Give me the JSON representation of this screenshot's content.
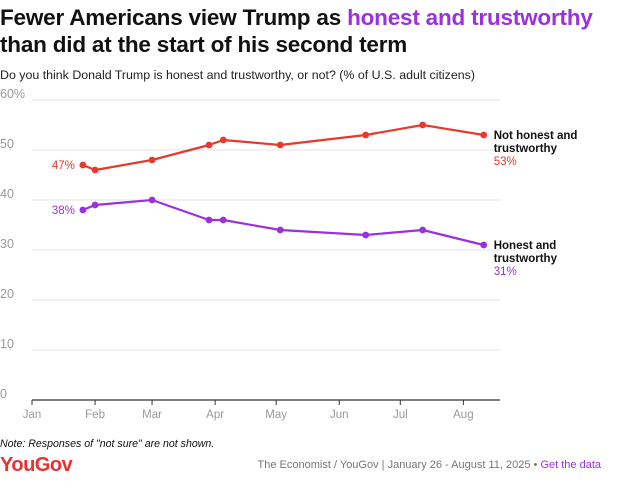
{
  "title": {
    "part1": "Fewer Americans view Trump as ",
    "highlight": "honest and trustworthy",
    "part2": " than did at the start of his second term"
  },
  "subtitle": "Do you think Donald Trump is honest and trustworthy, or not? (% of U.S. adult citizens)",
  "note": "Note: Responses of \"not sure\" are not shown.",
  "footer": {
    "logo": "YouGov",
    "source": "The Economist / YouGov | January 26 - August 11, 2025",
    "separator": "•",
    "link": "Get the data"
  },
  "colors": {
    "not_honest": "#e8392d",
    "honest": "#9b30e0",
    "grid": "#e3e3e3",
    "axis": "#333333",
    "tick": "#999999"
  },
  "chart_data": {
    "type": "line",
    "title": "Fewer Americans view Trump as honest and trustworthy than did at the start of his second term",
    "xlabel": "",
    "ylabel": "% of U.S. adult citizens",
    "ylim": [
      0,
      60
    ],
    "yticks": [
      0,
      10,
      20,
      30,
      40,
      50,
      60
    ],
    "ytick_labels": [
      "0",
      "10",
      "20",
      "30",
      "40",
      "50",
      "60%"
    ],
    "xlim_days": [
      0,
      230
    ],
    "xticks": [
      {
        "label": "Jan",
        "day": 0
      },
      {
        "label": "Feb",
        "day": 31
      },
      {
        "label": "Mar",
        "day": 59
      },
      {
        "label": "Apr",
        "day": 90
      },
      {
        "label": "May",
        "day": 120
      },
      {
        "label": "Jun",
        "day": 151
      },
      {
        "label": "Jul",
        "day": 181
      },
      {
        "label": "Aug",
        "day": 212
      }
    ],
    "grid": true,
    "series": [
      {
        "name": "Not honest and trustworthy",
        "label_lines": [
          "Not honest and",
          "trustworthy"
        ],
        "start_label": "47%",
        "end_label": "53%",
        "color_key": "not_honest",
        "points": [
          {
            "date": "Jan 26",
            "day": 25,
            "value": 47
          },
          {
            "date": "Feb 2",
            "day": 31,
            "value": 46
          },
          {
            "date": "Mar 1",
            "day": 59,
            "value": 48
          },
          {
            "date": "Mar 29",
            "day": 87,
            "value": 51
          },
          {
            "date": "Apr 5",
            "day": 94,
            "value": 52
          },
          {
            "date": "May 3",
            "day": 122,
            "value": 51
          },
          {
            "date": "Jun 14",
            "day": 164,
            "value": 53
          },
          {
            "date": "Jul 12",
            "day": 192,
            "value": 55
          },
          {
            "date": "Aug 11",
            "day": 222,
            "value": 53
          }
        ]
      },
      {
        "name": "Honest and trustworthy",
        "label_lines": [
          "Honest and",
          "trustworthy"
        ],
        "start_label": "38%",
        "end_label": "31%",
        "color_key": "honest",
        "points": [
          {
            "date": "Jan 26",
            "day": 25,
            "value": 38
          },
          {
            "date": "Feb 2",
            "day": 31,
            "value": 39
          },
          {
            "date": "Mar 1",
            "day": 59,
            "value": 40
          },
          {
            "date": "Mar 29",
            "day": 87,
            "value": 36
          },
          {
            "date": "Apr 5",
            "day": 94,
            "value": 36
          },
          {
            "date": "May 3",
            "day": 122,
            "value": 34
          },
          {
            "date": "Jun 14",
            "day": 164,
            "value": 33
          },
          {
            "date": "Jul 12",
            "day": 192,
            "value": 34
          },
          {
            "date": "Aug 11",
            "day": 222,
            "value": 31
          }
        ]
      }
    ]
  }
}
